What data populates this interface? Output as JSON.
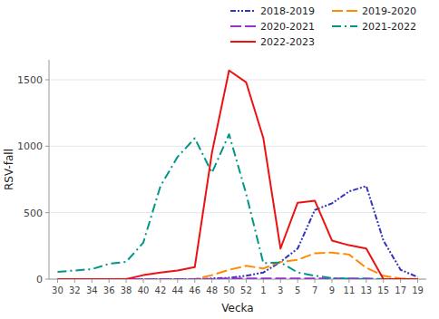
{
  "chart_data": {
    "type": "line",
    "xlabel": "Vecka",
    "ylabel": "RSV-fall",
    "categories": [
      "30",
      "32",
      "34",
      "36",
      "38",
      "40",
      "42",
      "44",
      "46",
      "48",
      "50",
      "52",
      "1",
      "3",
      "5",
      "7",
      "9",
      "11",
      "13",
      "15",
      "17",
      "19"
    ],
    "series": [
      {
        "name": "2018-2019",
        "color": "#3333bb",
        "line_style": "dashdotdot",
        "values": [
          0,
          0,
          0,
          0,
          0,
          0,
          0,
          0,
          0,
          5,
          10,
          25,
          50,
          130,
          230,
          520,
          570,
          660,
          700,
          290,
          70,
          15
        ]
      },
      {
        "name": "2019-2020",
        "color": "#ff8c00",
        "line_style": "dashed",
        "values": [
          0,
          0,
          0,
          0,
          0,
          0,
          0,
          0,
          0,
          30,
          70,
          100,
          80,
          130,
          145,
          195,
          200,
          185,
          85,
          25,
          5,
          0
        ]
      },
      {
        "name": "2020-2021",
        "color": "#9933cc",
        "line_style": "dashed",
        "values": [
          0,
          0,
          0,
          0,
          0,
          0,
          0,
          0,
          0,
          0,
          5,
          5,
          5,
          5,
          5,
          5,
          5,
          5,
          5,
          0,
          0,
          0
        ]
      },
      {
        "name": "2021-2022",
        "color": "#009688",
        "line_style": "dashdot",
        "values": [
          55,
          65,
          75,
          115,
          130,
          275,
          700,
          920,
          1060,
          800,
          1090,
          640,
          120,
          125,
          50,
          25,
          8,
          3,
          0,
          0,
          0,
          0
        ]
      },
      {
        "name": "2022-2023",
        "color": "#ee1111",
        "line_style": "solid",
        "values": [
          0,
          0,
          0,
          0,
          0,
          30,
          50,
          65,
          90,
          950,
          1570,
          1480,
          1060,
          230,
          575,
          590,
          290,
          255,
          230,
          0,
          0,
          0
        ]
      }
    ],
    "ylim": [
      0,
      1650
    ],
    "yticks": [
      0,
      500,
      1000,
      1500
    ],
    "grid": true,
    "legend": "top"
  }
}
